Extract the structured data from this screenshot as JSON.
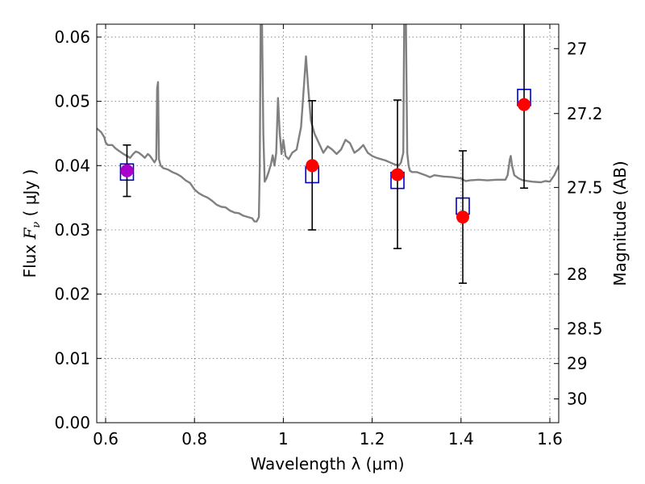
{
  "chart_data": {
    "type": "scatter",
    "xlabel": "Wavelength  λ (μm)",
    "ylabel_prefix": "Flux  ",
    "ylabel_var": "F",
    "ylabel_sub": "ν",
    "ylabel_suffix": "  ( μJy )",
    "right_ylabel": "Magnitude (AB)",
    "xlim": [
      0.58,
      1.62
    ],
    "ylim": [
      0.0,
      0.062
    ],
    "grid": true,
    "x_ticks": [
      {
        "value": 0.6,
        "label": "0.6"
      },
      {
        "value": 0.8,
        "label": "0.8"
      },
      {
        "value": 1.0,
        "label": "1"
      },
      {
        "value": 1.2,
        "label": "1.2"
      },
      {
        "value": 1.4,
        "label": "1.4"
      },
      {
        "value": 1.6,
        "label": "1.6"
      }
    ],
    "y_ticks": [
      {
        "value": 0.0,
        "label": "0.00"
      },
      {
        "value": 0.01,
        "label": "0.01"
      },
      {
        "value": 0.02,
        "label": "0.02"
      },
      {
        "value": 0.03,
        "label": "0.03"
      },
      {
        "value": 0.04,
        "label": "0.04"
      },
      {
        "value": 0.05,
        "label": "0.05"
      },
      {
        "value": 0.06,
        "label": "0.06"
      }
    ],
    "right_ticks": [
      {
        "flux": 0.0582,
        "label": "27"
      },
      {
        "flux": 0.0481,
        "label": "27.2"
      },
      {
        "flux": 0.0366,
        "label": "27.5"
      },
      {
        "flux": 0.0231,
        "label": "28"
      },
      {
        "flux": 0.0146,
        "label": "28.5"
      },
      {
        "flux": 0.0092,
        "label": "29"
      },
      {
        "flux": 0.0037,
        "label": "30"
      }
    ],
    "model_spectrum": {
      "color": "#808080",
      "points": [
        [
          0.58,
          0.0458
        ],
        [
          0.585,
          0.0455
        ],
        [
          0.59,
          0.0452
        ],
        [
          0.597,
          0.0444
        ],
        [
          0.6,
          0.0436
        ],
        [
          0.605,
          0.0432
        ],
        [
          0.615,
          0.0432
        ],
        [
          0.622,
          0.0427
        ],
        [
          0.63,
          0.0423
        ],
        [
          0.64,
          0.0418
        ],
        [
          0.648,
          0.0415
        ],
        [
          0.655,
          0.0412
        ],
        [
          0.662,
          0.0418
        ],
        [
          0.668,
          0.0422
        ],
        [
          0.675,
          0.042
        ],
        [
          0.682,
          0.0416
        ],
        [
          0.688,
          0.0412
        ],
        [
          0.695,
          0.0418
        ],
        [
          0.7,
          0.0415
        ],
        [
          0.705,
          0.041
        ],
        [
          0.71,
          0.0405
        ],
        [
          0.714,
          0.041
        ],
        [
          0.716,
          0.052
        ],
        [
          0.718,
          0.053
        ],
        [
          0.72,
          0.041
        ],
        [
          0.724,
          0.04
        ],
        [
          0.73,
          0.0396
        ],
        [
          0.74,
          0.0394
        ],
        [
          0.75,
          0.039
        ],
        [
          0.76,
          0.0387
        ],
        [
          0.77,
          0.0383
        ],
        [
          0.78,
          0.0377
        ],
        [
          0.79,
          0.0373
        ],
        [
          0.8,
          0.0363
        ],
        [
          0.81,
          0.0357
        ],
        [
          0.82,
          0.0353
        ],
        [
          0.83,
          0.035
        ],
        [
          0.84,
          0.0345
        ],
        [
          0.85,
          0.0339
        ],
        [
          0.86,
          0.0336
        ],
        [
          0.87,
          0.0335
        ],
        [
          0.88,
          0.033
        ],
        [
          0.89,
          0.0327
        ],
        [
          0.9,
          0.0326
        ],
        [
          0.91,
          0.0322
        ],
        [
          0.92,
          0.032
        ],
        [
          0.93,
          0.0318
        ],
        [
          0.935,
          0.0313
        ],
        [
          0.94,
          0.0313
        ],
        [
          0.945,
          0.032
        ],
        [
          0.947,
          0.04
        ],
        [
          0.949,
          0.062
        ],
        [
          0.952,
          0.062
        ],
        [
          0.955,
          0.045
        ],
        [
          0.958,
          0.0375
        ],
        [
          0.962,
          0.038
        ],
        [
          0.967,
          0.039
        ],
        [
          0.972,
          0.0402
        ],
        [
          0.976,
          0.0416
        ],
        [
          0.98,
          0.04
        ],
        [
          0.984,
          0.042
        ],
        [
          0.988,
          0.0505
        ],
        [
          0.992,
          0.045
        ],
        [
          0.996,
          0.0418
        ],
        [
          1.0,
          0.044
        ],
        [
          1.005,
          0.0415
        ],
        [
          1.012,
          0.041
        ],
        [
          1.02,
          0.042
        ],
        [
          1.03,
          0.0425
        ],
        [
          1.04,
          0.046
        ],
        [
          1.047,
          0.053
        ],
        [
          1.051,
          0.057
        ],
        [
          1.056,
          0.052
        ],
        [
          1.062,
          0.047
        ],
        [
          1.07,
          0.045
        ],
        [
          1.08,
          0.0435
        ],
        [
          1.09,
          0.042
        ],
        [
          1.1,
          0.043
        ],
        [
          1.11,
          0.0425
        ],
        [
          1.12,
          0.0418
        ],
        [
          1.13,
          0.0425
        ],
        [
          1.14,
          0.044
        ],
        [
          1.15,
          0.0435
        ],
        [
          1.16,
          0.042
        ],
        [
          1.17,
          0.0425
        ],
        [
          1.18,
          0.0432
        ],
        [
          1.19,
          0.042
        ],
        [
          1.2,
          0.0415
        ],
        [
          1.21,
          0.0412
        ],
        [
          1.22,
          0.041
        ],
        [
          1.23,
          0.0408
        ],
        [
          1.24,
          0.0405
        ],
        [
          1.25,
          0.0402
        ],
        [
          1.26,
          0.04
        ],
        [
          1.265,
          0.0405
        ],
        [
          1.27,
          0.042
        ],
        [
          1.272,
          0.062
        ],
        [
          1.276,
          0.062
        ],
        [
          1.279,
          0.042
        ],
        [
          1.282,
          0.04
        ],
        [
          1.285,
          0.0392
        ],
        [
          1.29,
          0.039
        ],
        [
          1.3,
          0.039
        ],
        [
          1.32,
          0.0385
        ],
        [
          1.33,
          0.0382
        ],
        [
          1.34,
          0.0385
        ],
        [
          1.36,
          0.0383
        ],
        [
          1.38,
          0.0382
        ],
        [
          1.4,
          0.038
        ],
        [
          1.41,
          0.0376
        ],
        [
          1.42,
          0.0377
        ],
        [
          1.44,
          0.0378
        ],
        [
          1.46,
          0.0377
        ],
        [
          1.48,
          0.0378
        ],
        [
          1.5,
          0.0378
        ],
        [
          1.505,
          0.0385
        ],
        [
          1.51,
          0.041
        ],
        [
          1.512,
          0.0415
        ],
        [
          1.515,
          0.04
        ],
        [
          1.52,
          0.0385
        ],
        [
          1.53,
          0.038
        ],
        [
          1.54,
          0.0377
        ],
        [
          1.56,
          0.0375
        ],
        [
          1.58,
          0.0374
        ],
        [
          1.59,
          0.0376
        ],
        [
          1.6,
          0.0375
        ],
        [
          1.61,
          0.0385
        ],
        [
          1.62,
          0.04
        ]
      ]
    },
    "model_photometry": {
      "marker": "open-square",
      "color": "#0000cc",
      "points": [
        {
          "x": 0.648,
          "y": 0.039
        },
        {
          "x": 1.065,
          "y": 0.0386
        },
        {
          "x": 1.257,
          "y": 0.0377
        },
        {
          "x": 1.404,
          "y": 0.0337
        },
        {
          "x": 1.542,
          "y": 0.0506
        }
      ]
    },
    "observed_photometry": {
      "marker": "filled-circle",
      "color": "#ff0000",
      "points": [
        {
          "x": 0.648,
          "y": 0.0392,
          "err_low": 0.004,
          "err_high": 0.004,
          "color": "#aa00cc"
        },
        {
          "x": 1.065,
          "y": 0.04,
          "err_low": 0.01,
          "err_high": 0.0101
        },
        {
          "x": 1.257,
          "y": 0.0386,
          "err_low": 0.0115,
          "err_high": 0.0116
        },
        {
          "x": 1.404,
          "y": 0.032,
          "err_low": 0.0103,
          "err_high": 0.0103
        },
        {
          "x": 1.542,
          "y": 0.0495,
          "err_low": 0.013,
          "err_high": 0.013
        }
      ]
    }
  }
}
